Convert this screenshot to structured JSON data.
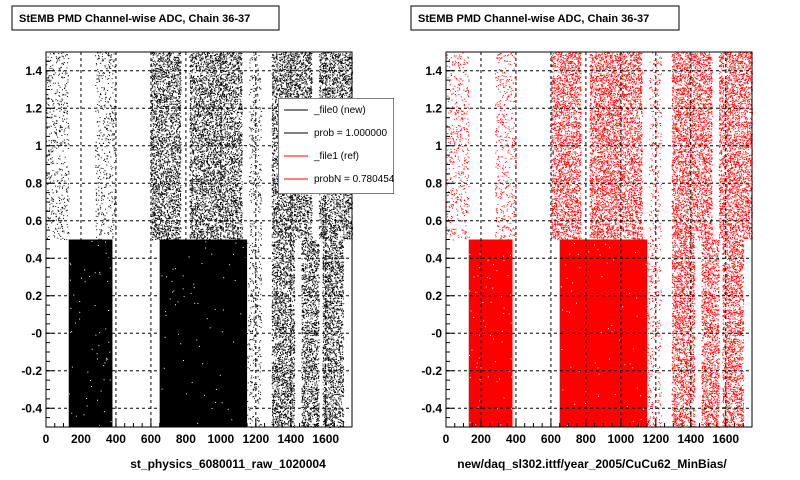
{
  "chart_data": [
    {
      "type": "scatter",
      "title": "StEMB PMD Channel-wise ADC, Chain 36-37",
      "xlabel": "st_physics_6080011_raw_1020004",
      "ylabel": "",
      "xlim": [
        0,
        1750
      ],
      "ylim": [
        -0.5,
        1.5
      ],
      "grid": true,
      "x_ticks": [
        "0",
        "200",
        "400",
        "600",
        "800",
        "1000",
        "1200",
        "1400",
        "1600"
      ],
      "y_ticks": [
        "-0.4",
        "-0.2",
        "-0",
        "0.2",
        "0.4",
        "0.6",
        "0.8",
        "1",
        "1.2",
        "1.4"
      ],
      "series": [
        {
          "name": "_file0 (new)",
          "color": "#000000",
          "bands": [
            {
              "x": [
                0,
                130
              ],
              "y": [
                0.5,
                1.5
              ],
              "density": "sparse"
            },
            {
              "x": [
                280,
                400
              ],
              "y": [
                0.5,
                1.5
              ],
              "density": "sparse"
            },
            {
              "x": [
                600,
                770
              ],
              "y": [
                0.5,
                1.5
              ],
              "density": "dense"
            },
            {
              "x": [
                820,
                1120
              ],
              "y": [
                0.5,
                1.5
              ],
              "density": "dense"
            },
            {
              "x": [
                1160,
                1230
              ],
              "y": [
                0.5,
                1.5
              ],
              "density": "sparse"
            },
            {
              "x": [
                1290,
                1520
              ],
              "y": [
                0.5,
                1.5
              ],
              "density": "dense"
            },
            {
              "x": [
                1560,
                1750
              ],
              "y": [
                0.5,
                1.5
              ],
              "density": "dense"
            },
            {
              "x": [
                130,
                380
              ],
              "y": [
                -0.5,
                0.5
              ],
              "density": "solid"
            },
            {
              "x": [
                650,
                1150
              ],
              "y": [
                -0.5,
                0.5
              ],
              "density": "solid"
            },
            {
              "x": [
                1150,
                1230
              ],
              "y": [
                -0.5,
                0.5
              ],
              "density": "sparse"
            },
            {
              "x": [
                1290,
                1420
              ],
              "y": [
                -0.5,
                0.5
              ],
              "density": "dense"
            },
            {
              "x": [
                1460,
                1560
              ],
              "y": [
                -0.5,
                0.5
              ],
              "density": "dense"
            },
            {
              "x": [
                1580,
                1700
              ],
              "y": [
                -0.5,
                0.5
              ],
              "density": "dense"
            }
          ]
        }
      ],
      "legend": {
        "placement": "top-right",
        "entries": [
          {
            "text": "_file0 (new)",
            "color": "#000000"
          },
          {
            "text": "prob = 1.000000",
            "color": "#000000"
          },
          {
            "text": "_file1 (ref)",
            "color": "#ff0000"
          },
          {
            "text": "probN = 0.780454",
            "color": "#ff0000"
          }
        ]
      }
    },
    {
      "type": "scatter",
      "title": "StEMB PMD Channel-wise ADC, Chain 36-37",
      "xlabel": "new/daq_sl302.ittf/year_2005/CuCu62_MinBias/",
      "ylabel": "",
      "xlim": [
        0,
        1750
      ],
      "ylim": [
        -0.5,
        1.5
      ],
      "grid": true,
      "x_ticks": [
        "0",
        "200",
        "400",
        "600",
        "800",
        "1000",
        "1200",
        "1400",
        "1600"
      ],
      "y_ticks": [
        "-0.4",
        "-0.2",
        "-0",
        "0.2",
        "0.4",
        "0.6",
        "0.8",
        "1",
        "1.2",
        "1.4"
      ],
      "series": [
        {
          "name": "_file1 (ref)",
          "color": "#ff0000",
          "bands": [
            {
              "x": [
                0,
                130
              ],
              "y": [
                0.5,
                1.5
              ],
              "density": "sparse"
            },
            {
              "x": [
                280,
                400
              ],
              "y": [
                0.5,
                1.5
              ],
              "density": "sparse"
            },
            {
              "x": [
                600,
                770
              ],
              "y": [
                0.5,
                1.5
              ],
              "density": "dense"
            },
            {
              "x": [
                820,
                1120
              ],
              "y": [
                0.5,
                1.5
              ],
              "density": "dense"
            },
            {
              "x": [
                1160,
                1230
              ],
              "y": [
                0.5,
                1.5
              ],
              "density": "sparse"
            },
            {
              "x": [
                1290,
                1520
              ],
              "y": [
                0.5,
                1.5
              ],
              "density": "dense"
            },
            {
              "x": [
                1560,
                1750
              ],
              "y": [
                0.5,
                1.5
              ],
              "density": "dense"
            },
            {
              "x": [
                130,
                380
              ],
              "y": [
                -0.5,
                0.5
              ],
              "density": "solid"
            },
            {
              "x": [
                650,
                1150
              ],
              "y": [
                -0.5,
                0.5
              ],
              "density": "solid"
            },
            {
              "x": [
                1150,
                1230
              ],
              "y": [
                -0.5,
                0.5
              ],
              "density": "sparse"
            },
            {
              "x": [
                1290,
                1420
              ],
              "y": [
                -0.5,
                0.5
              ],
              "density": "dense"
            },
            {
              "x": [
                1460,
                1560
              ],
              "y": [
                -0.5,
                0.5
              ],
              "density": "dense"
            },
            {
              "x": [
                1580,
                1700
              ],
              "y": [
                -0.5,
                0.5
              ],
              "density": "dense"
            }
          ]
        }
      ]
    }
  ]
}
